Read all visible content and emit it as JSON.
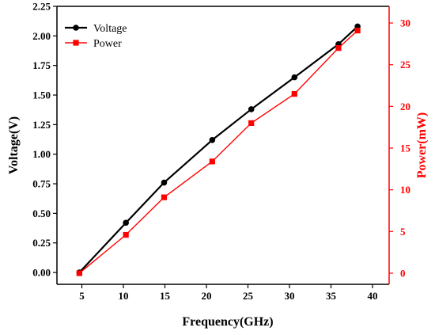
{
  "chart_data": {
    "type": "line",
    "title": "",
    "xlabel": "Frequency(GHz)",
    "ylabel_left": "Voltage(V)",
    "ylabel_right": "Power(mW)",
    "xlim": [
      2,
      42
    ],
    "ylim_left": [
      -0.1,
      2.25
    ],
    "ylim_right": [
      -1.333,
      32.0
    ],
    "x_ticks": [
      5,
      10,
      15,
      20,
      25,
      30,
      35,
      40
    ],
    "y_left_ticks": [
      0.0,
      0.25,
      0.5,
      0.75,
      1.0,
      1.25,
      1.5,
      1.75,
      2.0,
      2.25
    ],
    "y_left_tick_labels": [
      "0.00",
      "0.25",
      "0.50",
      "0.75",
      "1.00",
      "1.25",
      "1.50",
      "1.75",
      "2.00",
      "2.25"
    ],
    "y_right_ticks": [
      0,
      5,
      10,
      15,
      20,
      25,
      30
    ],
    "grid": false,
    "legend_position": "top-left",
    "series": [
      {
        "name": "Voltage",
        "axis": "left",
        "color": "#000000",
        "marker": "circle",
        "x": [
          4.7,
          10.3,
          14.9,
          20.7,
          25.4,
          30.6,
          35.9,
          38.2
        ],
        "y": [
          0.0,
          0.42,
          0.76,
          1.12,
          1.38,
          1.65,
          1.93,
          2.08
        ]
      },
      {
        "name": "Power",
        "axis": "right",
        "color": "#ff0000",
        "marker": "square",
        "x": [
          4.7,
          10.3,
          14.9,
          20.7,
          25.4,
          30.6,
          35.9,
          38.2
        ],
        "y": [
          0.0,
          4.6,
          9.1,
          13.4,
          18.0,
          21.5,
          27.0,
          29.1
        ]
      }
    ]
  }
}
